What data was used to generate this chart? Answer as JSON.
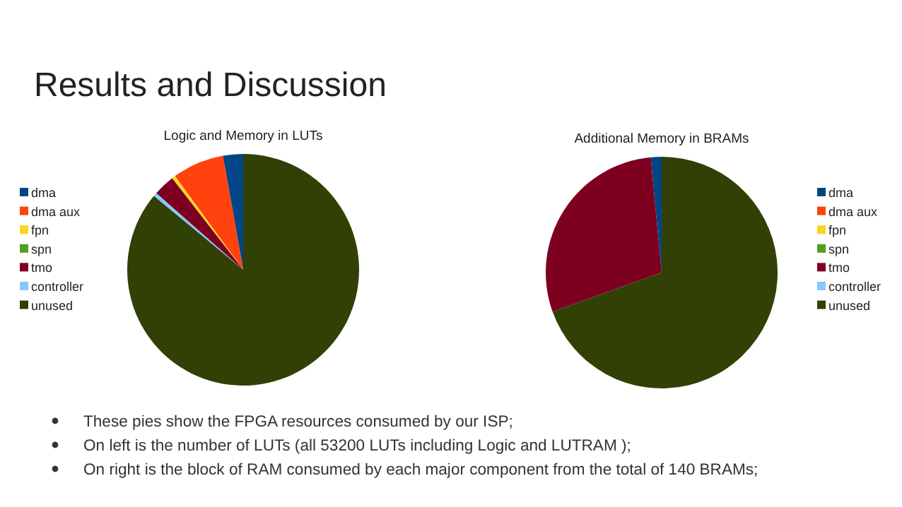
{
  "chart_data": [
    {
      "type": "pie",
      "title": "Logic and Memory in LUTs",
      "categories": [
        "dma",
        "dma aux",
        "fpn",
        "spn",
        "tmo",
        "controller",
        "unused"
      ],
      "values": [
        2.8,
        7.2,
        0.5,
        0,
        3,
        0.5,
        86
      ],
      "colors": [
        "#004586",
        "#ff420e",
        "#ffd320",
        "#579d1c",
        "#7e0021",
        "#83caff",
        "#314004"
      ],
      "legend": "left"
    },
    {
      "type": "pie",
      "title": "Additional Memory in BRAMs",
      "categories": [
        "dma",
        "dma aux",
        "fpn",
        "spn",
        "tmo",
        "controller",
        "unused"
      ],
      "values": [
        1.5,
        0,
        0,
        0,
        29,
        0,
        69.5
      ],
      "colors": [
        "#004586",
        "#ff420e",
        "#ffd320",
        "#579d1c",
        "#7e0021",
        "#83caff",
        "#314004"
      ],
      "legend": "right"
    },
    {
      "type": "other",
      "title": "Results and Discussion",
      "annotations": [
        "These pies show the FPGA resources consumed by our ISP;",
        "On left is the number of LUTs (all 53200 LUTs including Logic  and LUTRAM );",
        "On right is the block of RAM consumed by each major component from the total of 140 BRAMs;"
      ]
    }
  ]
}
